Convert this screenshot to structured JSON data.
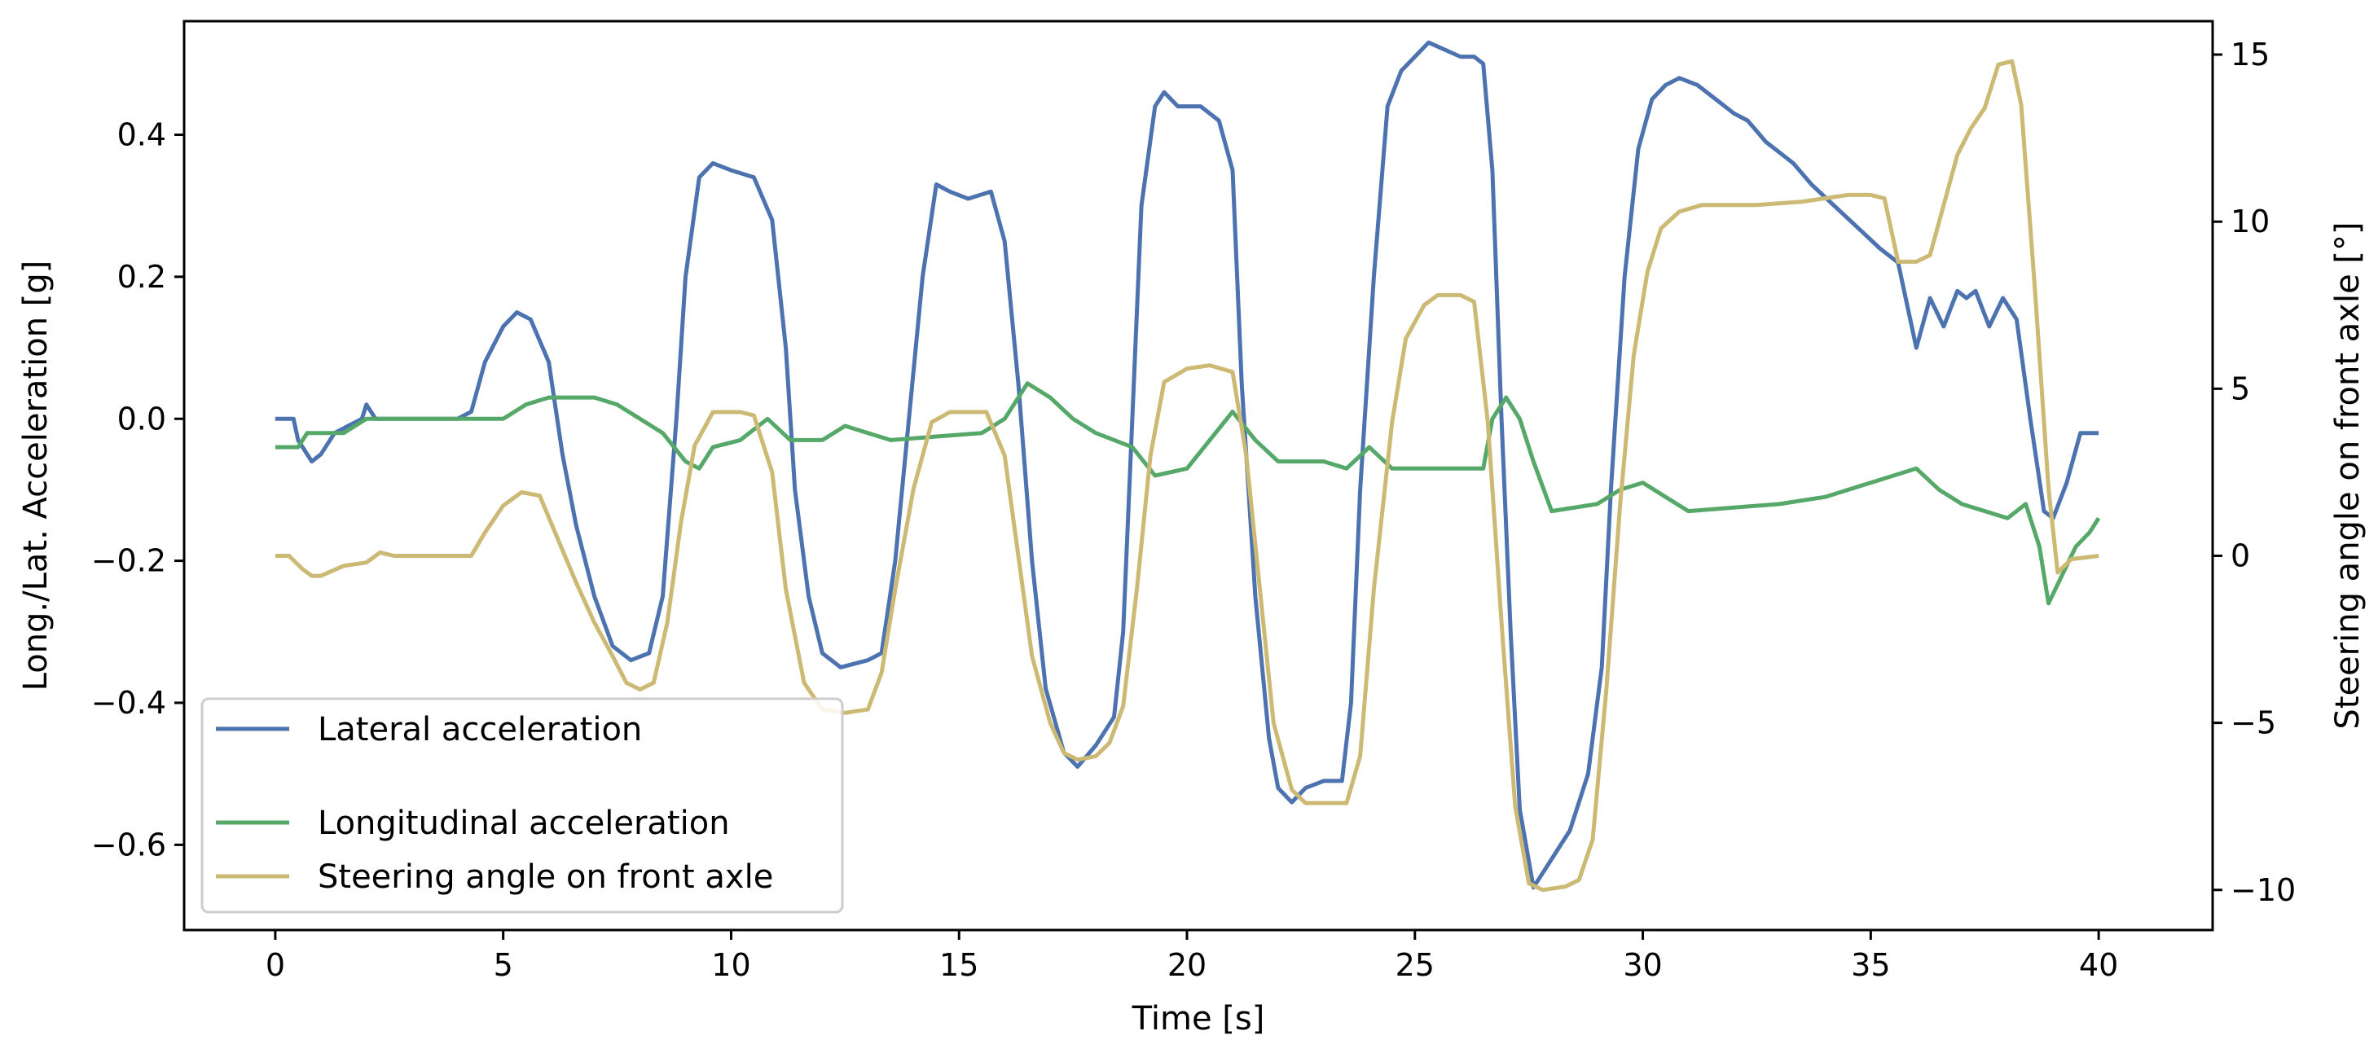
{
  "chart_data": {
    "type": "line",
    "title": "",
    "xlabel": "Time [s]",
    "ylabel": "Long./Lat. Acceleration [g]",
    "ylabel_right": "Steering angle on front axle [°]",
    "xlim": [
      -2,
      42.5
    ],
    "ylim": [
      -0.72,
      0.56
    ],
    "ylim_right": [
      -11.2,
      16.0
    ],
    "xticks": [
      0,
      5,
      10,
      15,
      20,
      25,
      30,
      35,
      40
    ],
    "yticks": [
      -0.6,
      -0.4,
      -0.2,
      0.0,
      0.2,
      0.4
    ],
    "yticks_right": [
      -10,
      -5,
      0,
      5,
      10,
      15
    ],
    "xtick_labels": [
      "0",
      "5",
      "10",
      "15",
      "20",
      "25",
      "30",
      "35",
      "40"
    ],
    "ytick_labels": [
      "−0.6",
      "−0.4",
      "−0.2",
      "0.0",
      "0.2",
      "0.4"
    ],
    "ytick_labels_right": [
      "−10",
      "−5",
      "0",
      "5",
      "10",
      "15"
    ],
    "grid": false,
    "legend_position": "lower-left",
    "series": [
      {
        "name": "Lateral acceleration",
        "axis": "left",
        "color": "#4c72b0",
        "points": [
          [
            0,
            0.0
          ],
          [
            0.4,
            0.0
          ],
          [
            0.5,
            -0.03
          ],
          [
            0.8,
            -0.06
          ],
          [
            1.0,
            -0.05
          ],
          [
            1.3,
            -0.02
          ],
          [
            1.6,
            -0.01
          ],
          [
            1.9,
            0.0
          ],
          [
            2.0,
            0.02
          ],
          [
            2.2,
            0.0
          ],
          [
            4.0,
            0.0
          ],
          [
            4.3,
            0.01
          ],
          [
            4.6,
            0.08
          ],
          [
            5.0,
            0.13
          ],
          [
            5.3,
            0.15
          ],
          [
            5.6,
            0.14
          ],
          [
            6.0,
            0.08
          ],
          [
            6.3,
            -0.05
          ],
          [
            6.6,
            -0.15
          ],
          [
            7.0,
            -0.25
          ],
          [
            7.4,
            -0.32
          ],
          [
            7.8,
            -0.34
          ],
          [
            8.2,
            -0.33
          ],
          [
            8.5,
            -0.25
          ],
          [
            8.8,
            0.0
          ],
          [
            9.0,
            0.2
          ],
          [
            9.3,
            0.34
          ],
          [
            9.6,
            0.36
          ],
          [
            10.0,
            0.35
          ],
          [
            10.5,
            0.34
          ],
          [
            10.9,
            0.28
          ],
          [
            11.2,
            0.1
          ],
          [
            11.4,
            -0.1
          ],
          [
            11.7,
            -0.25
          ],
          [
            12.0,
            -0.33
          ],
          [
            12.4,
            -0.35
          ],
          [
            13.0,
            -0.34
          ],
          [
            13.3,
            -0.33
          ],
          [
            13.6,
            -0.2
          ],
          [
            13.9,
            0.0
          ],
          [
            14.2,
            0.2
          ],
          [
            14.5,
            0.33
          ],
          [
            14.8,
            0.32
          ],
          [
            15.2,
            0.31
          ],
          [
            15.7,
            0.32
          ],
          [
            16.0,
            0.25
          ],
          [
            16.3,
            0.05
          ],
          [
            16.6,
            -0.2
          ],
          [
            16.9,
            -0.38
          ],
          [
            17.3,
            -0.47
          ],
          [
            17.6,
            -0.49
          ],
          [
            18.0,
            -0.46
          ],
          [
            18.4,
            -0.42
          ],
          [
            18.6,
            -0.3
          ],
          [
            18.8,
            0.0
          ],
          [
            19.0,
            0.3
          ],
          [
            19.3,
            0.44
          ],
          [
            19.5,
            0.46
          ],
          [
            19.8,
            0.44
          ],
          [
            20.3,
            0.44
          ],
          [
            20.7,
            0.42
          ],
          [
            21.0,
            0.35
          ],
          [
            21.2,
            0.05
          ],
          [
            21.5,
            -0.25
          ],
          [
            21.8,
            -0.45
          ],
          [
            22.0,
            -0.52
          ],
          [
            22.3,
            -0.54
          ],
          [
            22.6,
            -0.52
          ],
          [
            23.0,
            -0.51
          ],
          [
            23.4,
            -0.51
          ],
          [
            23.6,
            -0.4
          ],
          [
            23.8,
            -0.1
          ],
          [
            24.1,
            0.2
          ],
          [
            24.4,
            0.44
          ],
          [
            24.7,
            0.49
          ],
          [
            25.0,
            0.51
          ],
          [
            25.3,
            0.53
          ],
          [
            26.0,
            0.51
          ],
          [
            26.3,
            0.51
          ],
          [
            26.5,
            0.5
          ],
          [
            26.7,
            0.35
          ],
          [
            26.9,
            0.0
          ],
          [
            27.1,
            -0.3
          ],
          [
            27.3,
            -0.55
          ],
          [
            27.6,
            -0.66
          ],
          [
            28.0,
            -0.62
          ],
          [
            28.4,
            -0.58
          ],
          [
            28.8,
            -0.5
          ],
          [
            29.1,
            -0.35
          ],
          [
            29.3,
            -0.1
          ],
          [
            29.6,
            0.2
          ],
          [
            29.9,
            0.38
          ],
          [
            30.2,
            0.45
          ],
          [
            30.5,
            0.47
          ],
          [
            30.8,
            0.48
          ],
          [
            31.2,
            0.47
          ],
          [
            31.6,
            0.45
          ],
          [
            32.0,
            0.43
          ],
          [
            32.3,
            0.42
          ],
          [
            32.7,
            0.39
          ],
          [
            33.3,
            0.36
          ],
          [
            33.7,
            0.33
          ],
          [
            34.2,
            0.3
          ],
          [
            34.7,
            0.27
          ],
          [
            35.2,
            0.24
          ],
          [
            35.6,
            0.22
          ],
          [
            35.8,
            0.16
          ],
          [
            36.0,
            0.1
          ],
          [
            36.3,
            0.17
          ],
          [
            36.6,
            0.13
          ],
          [
            36.9,
            0.18
          ],
          [
            37.1,
            0.17
          ],
          [
            37.3,
            0.18
          ],
          [
            37.6,
            0.13
          ],
          [
            37.9,
            0.17
          ],
          [
            38.2,
            0.14
          ],
          [
            38.5,
            0.0
          ],
          [
            38.8,
            -0.13
          ],
          [
            39.0,
            -0.14
          ],
          [
            39.3,
            -0.09
          ],
          [
            39.6,
            -0.02
          ],
          [
            40.0,
            -0.02
          ]
        ]
      },
      {
        "name": "Longitudinal acceleration",
        "axis": "left",
        "color": "#55a868",
        "points": [
          [
            0,
            -0.04
          ],
          [
            0.5,
            -0.04
          ],
          [
            0.7,
            -0.02
          ],
          [
            1.5,
            -0.02
          ],
          [
            2.0,
            0.0
          ],
          [
            5.0,
            0.0
          ],
          [
            5.5,
            0.02
          ],
          [
            6.0,
            0.03
          ],
          [
            7.0,
            0.03
          ],
          [
            7.5,
            0.02
          ],
          [
            8.0,
            0.0
          ],
          [
            8.5,
            -0.02
          ],
          [
            9.0,
            -0.06
          ],
          [
            9.3,
            -0.07
          ],
          [
            9.6,
            -0.04
          ],
          [
            10.2,
            -0.03
          ],
          [
            10.8,
            0.0
          ],
          [
            11.3,
            -0.03
          ],
          [
            12.0,
            -0.03
          ],
          [
            12.5,
            -0.01
          ],
          [
            13.5,
            -0.03
          ],
          [
            15.5,
            -0.02
          ],
          [
            16.0,
            0.0
          ],
          [
            16.5,
            0.05
          ],
          [
            17.0,
            0.03
          ],
          [
            17.5,
            0.0
          ],
          [
            18.0,
            -0.02
          ],
          [
            18.8,
            -0.04
          ],
          [
            19.3,
            -0.08
          ],
          [
            20.0,
            -0.07
          ],
          [
            20.5,
            -0.03
          ],
          [
            21.0,
            0.01
          ],
          [
            21.5,
            -0.03
          ],
          [
            22.0,
            -0.06
          ],
          [
            23.0,
            -0.06
          ],
          [
            23.5,
            -0.07
          ],
          [
            24.0,
            -0.04
          ],
          [
            24.5,
            -0.07
          ],
          [
            26.0,
            -0.07
          ],
          [
            26.5,
            -0.07
          ],
          [
            26.7,
            0.0
          ],
          [
            27.0,
            0.03
          ],
          [
            27.3,
            0.0
          ],
          [
            27.6,
            -0.06
          ],
          [
            28.0,
            -0.13
          ],
          [
            29.0,
            -0.12
          ],
          [
            29.5,
            -0.1
          ],
          [
            30.0,
            -0.09
          ],
          [
            30.5,
            -0.11
          ],
          [
            31.0,
            -0.13
          ],
          [
            33.0,
            -0.12
          ],
          [
            34.0,
            -0.11
          ],
          [
            35.0,
            -0.09
          ],
          [
            35.5,
            -0.08
          ],
          [
            36.0,
            -0.07
          ],
          [
            36.5,
            -0.1
          ],
          [
            37.0,
            -0.12
          ],
          [
            38.0,
            -0.14
          ],
          [
            38.4,
            -0.12
          ],
          [
            38.7,
            -0.18
          ],
          [
            38.9,
            -0.26
          ],
          [
            39.2,
            -0.22
          ],
          [
            39.5,
            -0.18
          ],
          [
            39.8,
            -0.16
          ],
          [
            40.0,
            -0.14
          ]
        ]
      },
      {
        "name": "Steering angle on front axle",
        "axis": "right",
        "color": "#ccb974",
        "points": [
          [
            0,
            0.0
          ],
          [
            0.3,
            0.0
          ],
          [
            0.6,
            -0.4
          ],
          [
            0.8,
            -0.6
          ],
          [
            1.0,
            -0.6
          ],
          [
            1.5,
            -0.3
          ],
          [
            2.0,
            -0.2
          ],
          [
            2.3,
            0.1
          ],
          [
            2.6,
            0.0
          ],
          [
            3.5,
            0.0
          ],
          [
            4.3,
            0.0
          ],
          [
            4.6,
            0.7
          ],
          [
            5.0,
            1.5
          ],
          [
            5.4,
            1.9
          ],
          [
            5.8,
            1.8
          ],
          [
            6.2,
            0.5
          ],
          [
            6.6,
            -0.8
          ],
          [
            7.0,
            -2.0
          ],
          [
            7.4,
            -3.0
          ],
          [
            7.7,
            -3.8
          ],
          [
            8.0,
            -4.0
          ],
          [
            8.3,
            -3.8
          ],
          [
            8.6,
            -2.0
          ],
          [
            8.9,
            1.0
          ],
          [
            9.2,
            3.3
          ],
          [
            9.6,
            4.3
          ],
          [
            10.2,
            4.3
          ],
          [
            10.5,
            4.2
          ],
          [
            10.9,
            2.5
          ],
          [
            11.2,
            -1.0
          ],
          [
            11.6,
            -3.8
          ],
          [
            12.0,
            -4.6
          ],
          [
            12.5,
            -4.7
          ],
          [
            13.0,
            -4.6
          ],
          [
            13.3,
            -3.5
          ],
          [
            13.6,
            -1.0
          ],
          [
            14.0,
            2.0
          ],
          [
            14.4,
            4.0
          ],
          [
            14.8,
            4.3
          ],
          [
            15.6,
            4.3
          ],
          [
            16.0,
            3.0
          ],
          [
            16.3,
            0.0
          ],
          [
            16.6,
            -3.0
          ],
          [
            17.0,
            -5.0
          ],
          [
            17.3,
            -5.9
          ],
          [
            17.6,
            -6.1
          ],
          [
            18.0,
            -6.0
          ],
          [
            18.3,
            -5.6
          ],
          [
            18.6,
            -4.5
          ],
          [
            18.9,
            -1.0
          ],
          [
            19.2,
            3.0
          ],
          [
            19.5,
            5.2
          ],
          [
            20.0,
            5.6
          ],
          [
            20.5,
            5.7
          ],
          [
            21.0,
            5.5
          ],
          [
            21.3,
            3.0
          ],
          [
            21.6,
            -1.0
          ],
          [
            21.9,
            -5.0
          ],
          [
            22.3,
            -7.0
          ],
          [
            22.6,
            -7.4
          ],
          [
            23.5,
            -7.4
          ],
          [
            23.8,
            -6.0
          ],
          [
            24.1,
            -1.0
          ],
          [
            24.5,
            4.0
          ],
          [
            24.8,
            6.5
          ],
          [
            25.2,
            7.5
          ],
          [
            25.5,
            7.8
          ],
          [
            26.0,
            7.8
          ],
          [
            26.3,
            7.6
          ],
          [
            26.6,
            4.0
          ],
          [
            26.9,
            -2.0
          ],
          [
            27.2,
            -7.5
          ],
          [
            27.5,
            -9.8
          ],
          [
            27.8,
            -10.0
          ],
          [
            28.3,
            -9.9
          ],
          [
            28.6,
            -9.7
          ],
          [
            28.9,
            -8.5
          ],
          [
            29.2,
            -4.0
          ],
          [
            29.5,
            1.5
          ],
          [
            29.8,
            6.0
          ],
          [
            30.1,
            8.5
          ],
          [
            30.4,
            9.8
          ],
          [
            30.8,
            10.3
          ],
          [
            31.3,
            10.5
          ],
          [
            32.5,
            10.5
          ],
          [
            33.5,
            10.6
          ],
          [
            34.5,
            10.8
          ],
          [
            35.0,
            10.8
          ],
          [
            35.3,
            10.7
          ],
          [
            35.6,
            8.8
          ],
          [
            36.0,
            8.8
          ],
          [
            36.3,
            9.0
          ],
          [
            36.6,
            10.5
          ],
          [
            36.9,
            12.0
          ],
          [
            37.2,
            12.8
          ],
          [
            37.5,
            13.4
          ],
          [
            37.8,
            14.7
          ],
          [
            38.1,
            14.8
          ],
          [
            38.3,
            13.5
          ],
          [
            38.6,
            8.0
          ],
          [
            38.9,
            2.0
          ],
          [
            39.1,
            -0.5
          ],
          [
            39.4,
            -0.1
          ],
          [
            40.0,
            0.0
          ]
        ]
      }
    ]
  }
}
